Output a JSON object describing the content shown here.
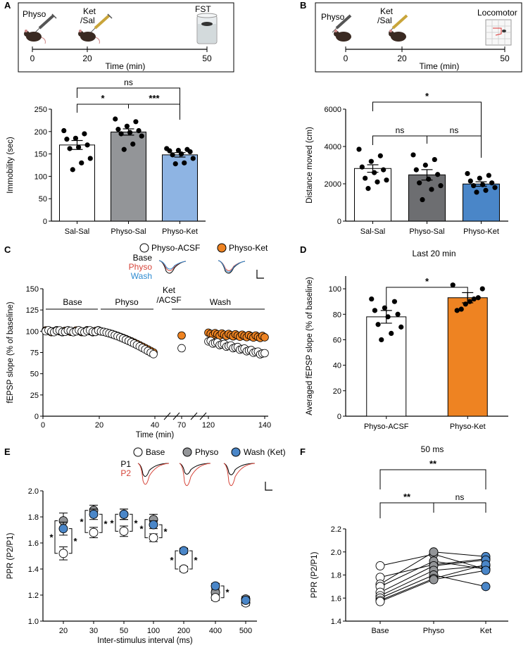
{
  "colors": {
    "black": "#000000",
    "white": "#ffffff",
    "gray": "#939598",
    "light_blue": "#8eb4e3",
    "blue": "#4a86c8",
    "orange": "#ee8322",
    "red": "#d6453a",
    "wash_blue": "#2e8bd1"
  },
  "panels": {
    "A": {
      "letter": "A",
      "timeline": {
        "inj1": "Physo",
        "inj2a": "Ket",
        "inj2b": "/Sal",
        "test": "FST",
        "t0": "0",
        "t1": "20",
        "t2": "50",
        "xlabel": "Time (min)",
        "icon_syringe": "syringe-icon",
        "icon_mouse": "mouse-icon",
        "icon_beaker": "beaker-icon"
      }
    },
    "B": {
      "letter": "B",
      "timeline": {
        "inj1": "Physo",
        "inj2a": "Ket",
        "inj2b": "/Sal",
        "test": "Locomotor",
        "t0": "0",
        "t1": "20",
        "t2": "50",
        "xlabel": "Time (min)",
        "icon_syringe": "syringe-icon",
        "icon_mouse": "mouse-icon",
        "icon_arena": "open-field-icon"
      }
    },
    "C": {
      "letter": "C",
      "legend": [
        "Physo-ACSF",
        "Physo-Ket"
      ],
      "trace_legend": [
        "Base",
        "Physo",
        "Wash"
      ],
      "phases": [
        "Base",
        "Physo",
        "Ket",
        "/ACSF",
        "Wash"
      ]
    },
    "D": {
      "letter": "D"
    },
    "E": {
      "letter": "E",
      "legend": [
        "Base",
        "Physo",
        "Wash (Ket)"
      ],
      "trace_legend": [
        "P1",
        "P2"
      ]
    },
    "F": {
      "letter": "F"
    }
  },
  "chart_data": [
    {
      "id": "A",
      "type": "bar",
      "ylabel": "Immobility (sec)",
      "ylim": [
        0,
        250
      ],
      "yticks": [
        "0",
        "50",
        "100",
        "150",
        "200",
        "250"
      ],
      "categories": [
        "Sal-Sal",
        "Physo-Sal",
        "Physo-Ket"
      ],
      "values": [
        170,
        199,
        148
      ],
      "errors": [
        10,
        7,
        5
      ],
      "points": [
        [
          202,
          195,
          185,
          183,
          170,
          165,
          162,
          140,
          130,
          115
        ],
        [
          228,
          222,
          212,
          205,
          202,
          198,
          195,
          190,
          172,
          160
        ],
        [
          162,
          160,
          158,
          157,
          155,
          150,
          148,
          140,
          130,
          128
        ]
      ],
      "comparisons": [
        {
          "a": 0,
          "b": 1,
          "label": "*"
        },
        {
          "a": 1,
          "b": 2,
          "label": "***"
        },
        {
          "a": 0,
          "b": 2,
          "label": "ns"
        }
      ]
    },
    {
      "id": "B",
      "type": "bar",
      "ylabel": "Distance moved (cm)",
      "ylim": [
        0,
        6000
      ],
      "yticks": [
        "0",
        "2000",
        "4000",
        "6000"
      ],
      "categories": [
        "Sal-Sal",
        "Physo-Sal",
        "Physo-Ket"
      ],
      "values": [
        2820,
        2480,
        1990
      ],
      "errors": [
        200,
        280,
        120
      ],
      "points": [
        [
          3850,
          3500,
          3200,
          2900,
          2750,
          2600,
          2300,
          2200,
          2100,
          1750
        ],
        [
          3550,
          3300,
          3000,
          2750,
          2500,
          2250,
          2050,
          1900,
          1700,
          1150
        ],
        [
          2550,
          2450,
          2300,
          2150,
          2050,
          1950,
          1900,
          1800,
          1650,
          1550
        ]
      ],
      "comparisons": [
        {
          "a": 0,
          "b": 1,
          "label": "ns"
        },
        {
          "a": 1,
          "b": 2,
          "label": "ns"
        },
        {
          "a": 0,
          "b": 2,
          "label": "*"
        }
      ]
    },
    {
      "id": "C",
      "type": "scatter",
      "ylabel": "fEPSP slope (% of baseline)",
      "xlabel": "Time (min)",
      "ylim": [
        0,
        150
      ],
      "yticks": [
        "0",
        "25",
        "50",
        "75",
        "100",
        "125",
        "150"
      ],
      "xticks": [
        "0",
        "20",
        "40",
        "70",
        "120",
        "140"
      ],
      "series": [
        {
          "name": "Physo-ACSF",
          "baseline": 100,
          "physo_end": 73,
          "ket_point": 80,
          "wash_start": 88,
          "wash_end": 73
        },
        {
          "name": "Physo-Ket",
          "baseline": 100,
          "physo_end": 75,
          "ket_point": 95,
          "wash_start": 97,
          "wash_end": 93
        }
      ]
    },
    {
      "id": "D",
      "type": "bar",
      "title": "Last 20 min",
      "ylabel": "Averaged fEPSP slope (% of baseline)",
      "ylim": [
        0,
        110
      ],
      "yticks": [
        "0",
        "20",
        "40",
        "60",
        "80",
        "100"
      ],
      "categories": [
        "Physo-ACSF",
        "Physo-Ket"
      ],
      "values": [
        78,
        93
      ],
      "errors": [
        5,
        4
      ],
      "points": [
        [
          92,
          90,
          85,
          83,
          80,
          78,
          72,
          70,
          65,
          60
        ],
        [
          103,
          100,
          93,
          92,
          90,
          88,
          84,
          83
        ]
      ],
      "comparisons": [
        {
          "a": 0,
          "b": 1,
          "label": "*"
        }
      ]
    },
    {
      "id": "E",
      "type": "scatter",
      "ylabel": "PPR (P2/P1)",
      "xlabel": "Inter-stimulus interval (ms)",
      "ylim": [
        1.0,
        2.0
      ],
      "yticks": [
        "1.0",
        "1.2",
        "1.4",
        "1.6",
        "1.8",
        "2.0"
      ],
      "categories": [
        "20",
        "30",
        "50",
        "100",
        "200",
        "400",
        "500"
      ],
      "series": [
        {
          "name": "Base",
          "values": [
            1.52,
            1.68,
            1.69,
            1.64,
            1.4,
            1.18,
            1.14
          ],
          "errors": [
            0.05,
            0.04,
            0.04,
            0.03,
            0.02,
            0.02,
            0.02
          ]
        },
        {
          "name": "Physo",
          "values": [
            1.77,
            1.85,
            1.82,
            1.78,
            1.54,
            1.22,
            1.17
          ],
          "errors": [
            0.06,
            0.04,
            0.04,
            0.04,
            0.02,
            0.02,
            0.02
          ]
        },
        {
          "name": "Wash (Ket)",
          "values": [
            1.71,
            1.82,
            1.82,
            1.74,
            1.54,
            1.27,
            1.16
          ],
          "errors": [
            0.05,
            0.04,
            0.04,
            0.03,
            0.02,
            0.02,
            0.02
          ]
        }
      ]
    },
    {
      "id": "F",
      "type": "line",
      "title": "50 ms",
      "ylabel": "PPR (P2/P1)",
      "ylim": [
        1.4,
        2.2
      ],
      "yticks": [
        "1.4",
        "1.6",
        "1.8",
        "2.0",
        "2.2"
      ],
      "categories": [
        "Base",
        "Physo",
        "Ket"
      ],
      "pairs": [
        [
          1.88,
          1.98,
          1.85
        ],
        [
          1.78,
          1.89,
          1.94
        ],
        [
          1.72,
          2.0,
          1.96
        ],
        [
          1.7,
          1.92,
          1.85
        ],
        [
          1.65,
          1.88,
          1.93
        ],
        [
          1.62,
          1.84,
          1.88
        ],
        [
          1.6,
          1.8,
          1.7
        ],
        [
          1.58,
          1.77,
          1.89
        ],
        [
          1.57,
          1.76,
          1.84
        ]
      ],
      "comparisons": [
        {
          "a": 0,
          "b": 1,
          "label": "**"
        },
        {
          "a": 1,
          "b": 2,
          "label": "ns"
        },
        {
          "a": 0,
          "b": 2,
          "label": "**"
        }
      ]
    }
  ]
}
